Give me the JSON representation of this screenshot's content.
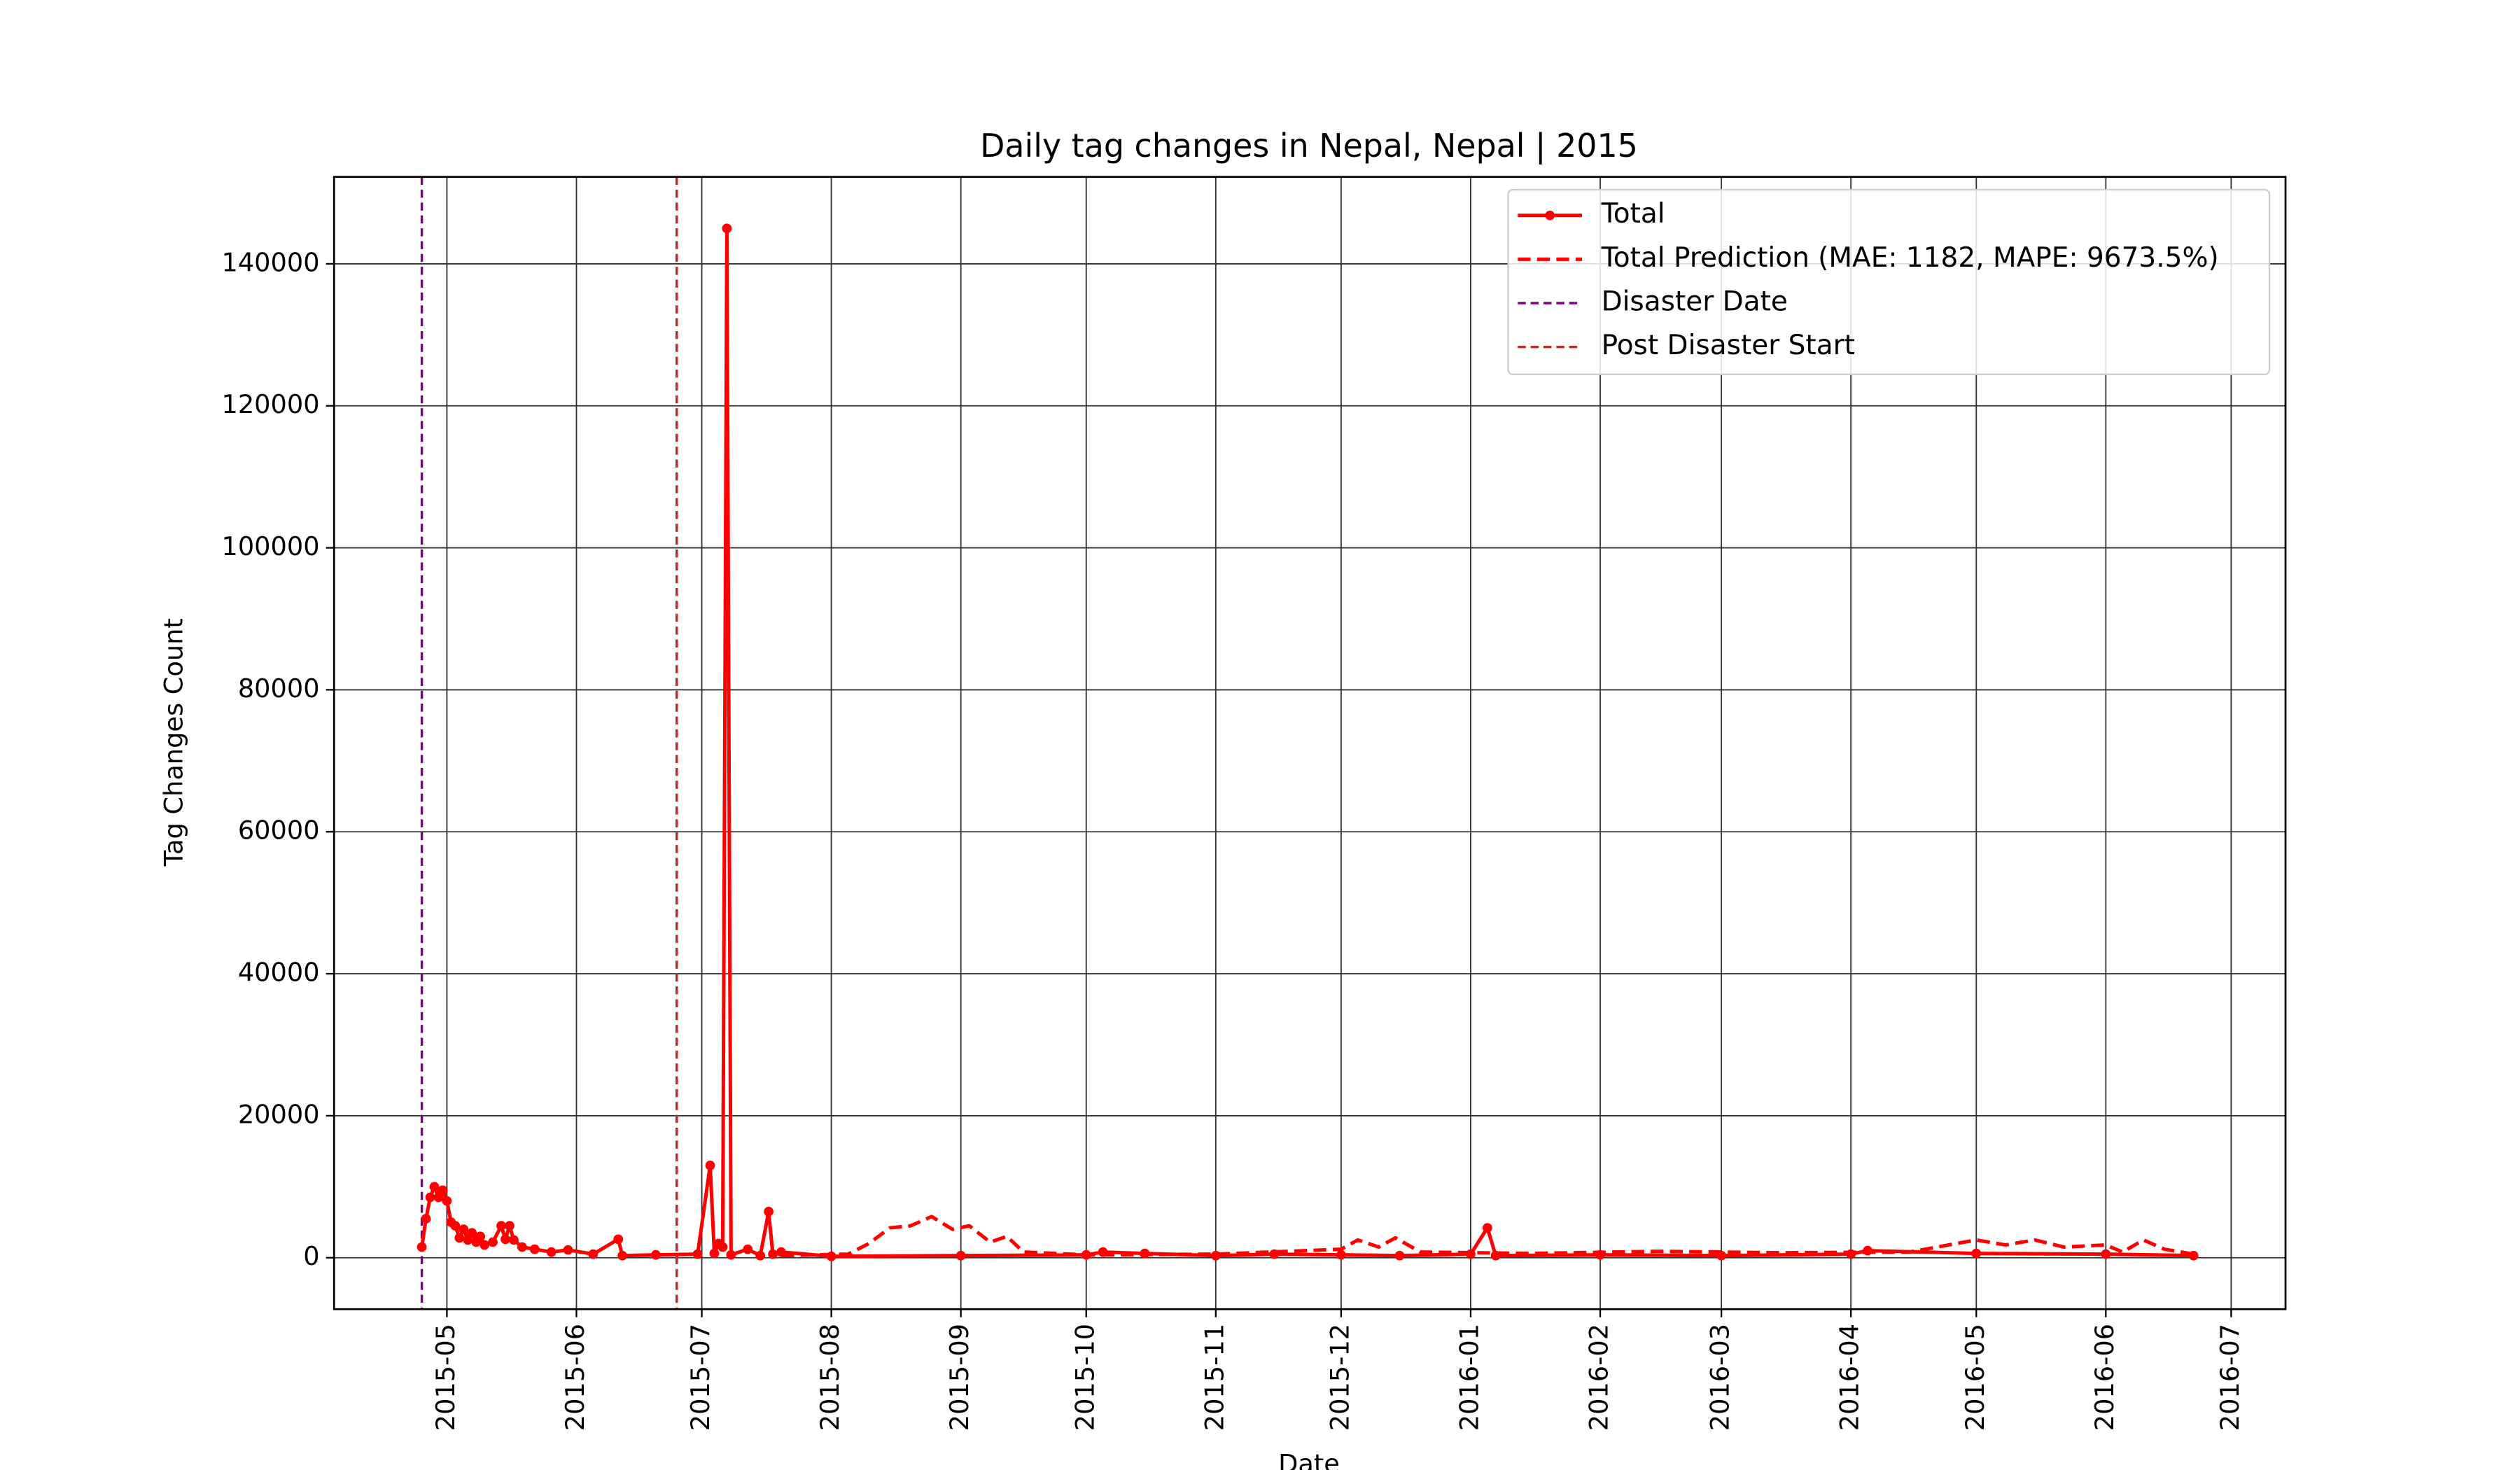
{
  "chart_data": {
    "type": "line",
    "title": "Daily tag changes in Nepal, Nepal | 2015",
    "xlabel": "Date",
    "ylabel": "Tag Changes Count",
    "xlim": [
      "2015-04-04",
      "2016-07-14"
    ],
    "ylim": [
      -7250,
      152250
    ],
    "xticks": [
      {
        "value": "2015-05-01",
        "label": "2015-05"
      },
      {
        "value": "2015-06-01",
        "label": "2015-06"
      },
      {
        "value": "2015-07-01",
        "label": "2015-07"
      },
      {
        "value": "2015-08-01",
        "label": "2015-08"
      },
      {
        "value": "2015-09-01",
        "label": "2015-09"
      },
      {
        "value": "2015-10-01",
        "label": "2015-10"
      },
      {
        "value": "2015-11-01",
        "label": "2015-11"
      },
      {
        "value": "2015-12-01",
        "label": "2015-12"
      },
      {
        "value": "2016-01-01",
        "label": "2016-01"
      },
      {
        "value": "2016-02-01",
        "label": "2016-02"
      },
      {
        "value": "2016-03-01",
        "label": "2016-03"
      },
      {
        "value": "2016-04-01",
        "label": "2016-04"
      },
      {
        "value": "2016-05-01",
        "label": "2016-05"
      },
      {
        "value": "2016-06-01",
        "label": "2016-06"
      },
      {
        "value": "2016-07-01",
        "label": "2016-07"
      }
    ],
    "yticks": [
      0,
      20000,
      40000,
      60000,
      80000,
      100000,
      120000,
      140000
    ],
    "grid": true,
    "legend": "upper right",
    "series": [
      {
        "name": "Total",
        "color": "#ff0000",
        "style": "solid",
        "markers": true,
        "x": [
          "2015-04-25",
          "2015-04-26",
          "2015-04-27",
          "2015-04-28",
          "2015-04-29",
          "2015-04-30",
          "2015-05-01",
          "2015-05-02",
          "2015-05-03",
          "2015-05-04",
          "2015-05-05",
          "2015-05-06",
          "2015-05-07",
          "2015-05-08",
          "2015-05-09",
          "2015-05-10",
          "2015-05-12",
          "2015-05-14",
          "2015-05-15",
          "2015-05-16",
          "2015-05-17",
          "2015-05-19",
          "2015-05-22",
          "2015-05-26",
          "2015-05-30",
          "2015-06-05",
          "2015-06-11",
          "2015-06-12",
          "2015-06-20",
          "2015-06-30",
          "2015-07-03",
          "2015-07-04",
          "2015-07-05",
          "2015-07-06",
          "2015-07-07",
          "2015-07-08",
          "2015-07-12",
          "2015-07-15",
          "2015-07-17",
          "2015-07-18",
          "2015-07-20",
          "2015-08-01",
          "2015-09-01",
          "2015-10-01",
          "2015-10-05",
          "2015-10-15",
          "2015-11-01",
          "2015-11-15",
          "2015-12-01",
          "2015-12-15",
          "2016-01-01",
          "2016-01-05",
          "2016-01-07",
          "2016-02-01",
          "2016-03-01",
          "2016-04-01",
          "2016-04-05",
          "2016-05-01",
          "2016-06-01",
          "2016-06-22"
        ],
        "values": [
          1500,
          5500,
          8500,
          10000,
          8500,
          9500,
          8000,
          5000,
          4500,
          2800,
          4000,
          2500,
          3500,
          2200,
          3000,
          1800,
          2200,
          4500,
          2600,
          4500,
          2500,
          1500,
          1200,
          800,
          1100,
          500,
          2600,
          300,
          400,
          500,
          13000,
          600,
          2000,
          1500,
          145000,
          400,
          1200,
          300,
          6500,
          500,
          800,
          200,
          300,
          400,
          800,
          600,
          300,
          500,
          400,
          300,
          500,
          4200,
          300,
          400,
          300,
          500,
          1000,
          600,
          500,
          300
        ]
      },
      {
        "name": "Total Prediction (MAE: 1182, MAPE: 9673.5%)",
        "color": "#ff0000",
        "style": "dashed",
        "markers": false,
        "x": [
          "2015-07-20",
          "2015-08-05",
          "2015-08-10",
          "2015-08-15",
          "2015-08-20",
          "2015-08-25",
          "2015-08-30",
          "2015-09-03",
          "2015-09-08",
          "2015-09-12",
          "2015-09-16",
          "2015-10-01",
          "2015-11-01",
          "2015-12-01",
          "2015-12-05",
          "2015-12-10",
          "2015-12-14",
          "2015-12-20",
          "2016-01-15",
          "2016-02-15",
          "2016-03-15",
          "2016-04-15",
          "2016-05-01",
          "2016-05-08",
          "2016-05-15",
          "2016-05-22",
          "2016-06-01",
          "2016-06-05",
          "2016-06-10",
          "2016-06-15",
          "2016-06-22"
        ],
        "values": [
          300,
          500,
          2000,
          4200,
          4500,
          5800,
          4000,
          4500,
          2200,
          3000,
          800,
          400,
          500,
          1200,
          2500,
          1500,
          2800,
          800,
          600,
          900,
          700,
          800,
          2500,
          1800,
          2500,
          1500,
          1800,
          800,
          2500,
          1200,
          500
        ]
      }
    ],
    "vlines": [
      {
        "name": "Disaster Date",
        "x": "2015-04-25",
        "color": "#800080"
      },
      {
        "name": "Post Disaster Start",
        "x": "2015-06-25",
        "color": "#c0282d"
      }
    ]
  }
}
